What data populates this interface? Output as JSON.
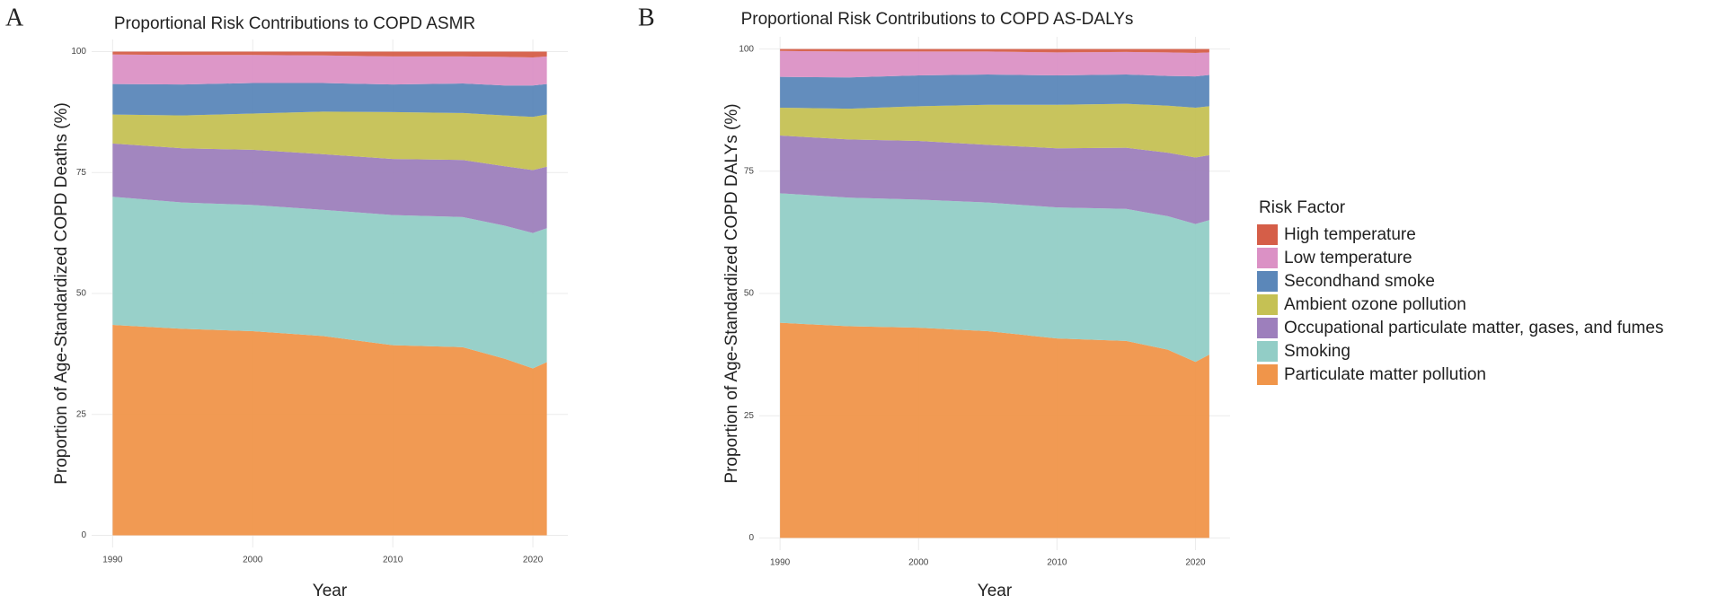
{
  "chart_data": [
    {
      "type": "area",
      "stacked": true,
      "panel": "A",
      "title": "Proportional Risk Contributions to COPD ASMR",
      "xlabel": "Year",
      "ylabel": "Proportion of Age-Standardized COPD  Deaths (%)",
      "x": [
        1990,
        1995,
        2000,
        2005,
        2010,
        2015,
        2018,
        2020,
        2021
      ],
      "xlim": [
        1988.5,
        2022.5
      ],
      "xticks": [
        1990,
        2000,
        2010,
        2020
      ],
      "ylim": [
        -2.5,
        102.5
      ],
      "yticks": [
        0,
        25,
        50,
        75,
        100
      ],
      "grid": true,
      "series": [
        {
          "name": "Particulate matter pollution",
          "color": "#f0954a",
          "values": [
            43.5,
            42.7,
            42.2,
            41.2,
            39.3,
            38.9,
            36.5,
            34.5,
            35.8
          ]
        },
        {
          "name": "Smoking",
          "color": "#92cdc6",
          "values": [
            26.5,
            26.1,
            26.1,
            26.1,
            26.9,
            26.9,
            27.5,
            28.0,
            27.7
          ]
        },
        {
          "name": "Occupational particulate matter, gases, and fumes",
          "color": "#9d7fbc",
          "values": [
            11.0,
            11.2,
            11.4,
            11.5,
            11.6,
            11.8,
            12.3,
            13.0,
            12.7
          ]
        },
        {
          "name": "Ambient ozone pollution",
          "color": "#c5c154",
          "values": [
            6.0,
            6.8,
            7.5,
            8.8,
            9.7,
            9.7,
            10.5,
            11.0,
            10.8
          ]
        },
        {
          "name": "Secondhand smoke",
          "color": "#5b87b9",
          "values": [
            6.3,
            6.4,
            6.3,
            5.9,
            5.7,
            6.1,
            6.2,
            6.5,
            6.3
          ]
        },
        {
          "name": "Low temperature",
          "color": "#db91c5",
          "values": [
            6.1,
            6.1,
            5.8,
            5.7,
            5.8,
            5.6,
            5.9,
            5.8,
            5.7
          ]
        },
        {
          "name": "High temperature",
          "color": "#d55e48",
          "values": [
            0.6,
            0.7,
            0.7,
            0.8,
            1.0,
            1.0,
            1.1,
            1.2,
            1.0
          ]
        }
      ]
    },
    {
      "type": "area",
      "stacked": true,
      "panel": "B",
      "title": "Proportional Risk Contributions to COPD AS-DALYs",
      "xlabel": "Year",
      "ylabel": "Proportion of Age-Standardized COPD DALYs (%)",
      "x": [
        1990,
        1995,
        2000,
        2005,
        2010,
        2015,
        2018,
        2020,
        2021
      ],
      "xlim": [
        1988.5,
        2022.5
      ],
      "xticks": [
        1990,
        2000,
        2010,
        2020
      ],
      "ylim": [
        -2.5,
        102.5
      ],
      "yticks": [
        0,
        25,
        50,
        75,
        100
      ],
      "grid": true,
      "series": [
        {
          "name": "Particulate matter pollution",
          "color": "#f0954a",
          "values": [
            44.0,
            43.3,
            43.0,
            42.3,
            40.8,
            40.3,
            38.5,
            36.0,
            37.5
          ]
        },
        {
          "name": "Smoking",
          "color": "#92cdc6",
          "values": [
            26.5,
            26.3,
            26.2,
            26.3,
            26.8,
            27.0,
            27.3,
            28.2,
            27.5
          ]
        },
        {
          "name": "Occupational particulate matter, gases, and fumes",
          "color": "#9d7fbc",
          "values": [
            11.8,
            11.9,
            12.0,
            11.8,
            12.1,
            12.5,
            13.0,
            13.6,
            13.3
          ]
        },
        {
          "name": "Ambient ozone pollution",
          "color": "#c5c154",
          "values": [
            5.7,
            6.3,
            7.1,
            8.2,
            8.9,
            9.0,
            9.6,
            10.2,
            10.0
          ]
        },
        {
          "name": "Secondhand smoke",
          "color": "#5b87b9",
          "values": [
            6.3,
            6.4,
            6.3,
            6.2,
            6.0,
            6.0,
            6.1,
            6.4,
            6.4
          ]
        },
        {
          "name": "Low temperature",
          "color": "#db91c5",
          "values": [
            5.3,
            5.3,
            4.9,
            4.7,
            4.7,
            4.6,
            4.8,
            4.8,
            4.6
          ]
        },
        {
          "name": "High temperature",
          "color": "#d55e48",
          "values": [
            0.4,
            0.5,
            0.5,
            0.5,
            0.7,
            0.6,
            0.7,
            0.8,
            0.7
          ]
        }
      ]
    }
  ],
  "legend": {
    "title": "Risk Factor",
    "position": "right"
  }
}
